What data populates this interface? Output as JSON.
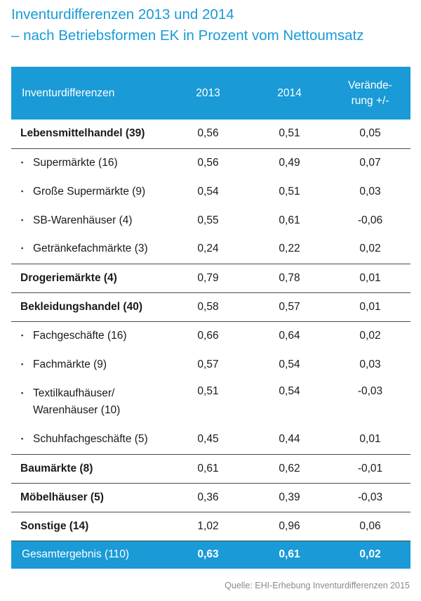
{
  "title": {
    "line1": "Inventurdifferenzen 2013 und 2014",
    "line2": "– nach Betriebsformen EK in Prozent vom Nettoumsatz"
  },
  "colors": {
    "accent": "#1a9ad6",
    "text": "#1a1a1a",
    "source": "#8a8a8a"
  },
  "chart_data": {
    "type": "table",
    "columns": [
      "Inventurdifferenzen",
      "2013",
      "2014",
      "Verände-rung +/-"
    ],
    "header_col3_lines": [
      "Verände-",
      "rung +/-"
    ],
    "rows": [
      {
        "label": "Lebensmittelhandel (39)",
        "level": "group",
        "v2013": "0,56",
        "v2014": "0,51",
        "change": "0,05"
      },
      {
        "label": "Supermärkte (16)",
        "level": "sub",
        "v2013": "0,56",
        "v2014": "0,49",
        "change": "0,07"
      },
      {
        "label": "Große Supermärkte (9)",
        "level": "sub",
        "v2013": "0,54",
        "v2014": "0,51",
        "change": "0,03"
      },
      {
        "label": "SB-Warenhäuser (4)",
        "level": "sub",
        "v2013": "0,55",
        "v2014": "0,61",
        "change": "-0,06"
      },
      {
        "label": "Getränkefachmärkte (3)",
        "level": "sub",
        "v2013": "0,24",
        "v2014": "0,22",
        "change": "0,02"
      },
      {
        "label": "Drogeriemärkte (4)",
        "level": "group",
        "v2013": "0,79",
        "v2014": "0,78",
        "change": "0,01"
      },
      {
        "label": "Bekleidungshandel (40)",
        "level": "group",
        "v2013": "0,58",
        "v2014": "0,57",
        "change": "0,01"
      },
      {
        "label": "Fachgeschäfte (16)",
        "level": "sub",
        "v2013": "0,66",
        "v2014": "0,64",
        "change": "0,02"
      },
      {
        "label": "Fachmärkte (9)",
        "level": "sub",
        "v2013": "0,57",
        "v2014": "0,54",
        "change": "0,03"
      },
      {
        "label": "Textilkaufhäuser/",
        "label2": "Warenhäuser (10)",
        "level": "sub",
        "v2013": "0,51",
        "v2014": "0,54",
        "change": "-0,03"
      },
      {
        "label": "Schuhfachgeschäfte (5)",
        "level": "sub",
        "v2013": "0,45",
        "v2014": "0,44",
        "change": "0,01"
      },
      {
        "label": "Baumärkte (8)",
        "level": "group",
        "v2013": "0,61",
        "v2014": "0,62",
        "change": "-0,01"
      },
      {
        "label": "Möbelhäuser (5)",
        "level": "group",
        "v2013": "0,36",
        "v2014": "0,39",
        "change": "-0,03"
      },
      {
        "label": "Sonstige (14)",
        "level": "group",
        "v2013": "1,02",
        "v2014": "0,96",
        "change": "0,06"
      }
    ],
    "total": {
      "label": "Gesamtergebnis (110)",
      "v2013": "0,63",
      "v2014": "0,61",
      "change": "0,02"
    }
  },
  "source": "Quelle: EHI-Erhebung Inventurdifferenzen 2015"
}
